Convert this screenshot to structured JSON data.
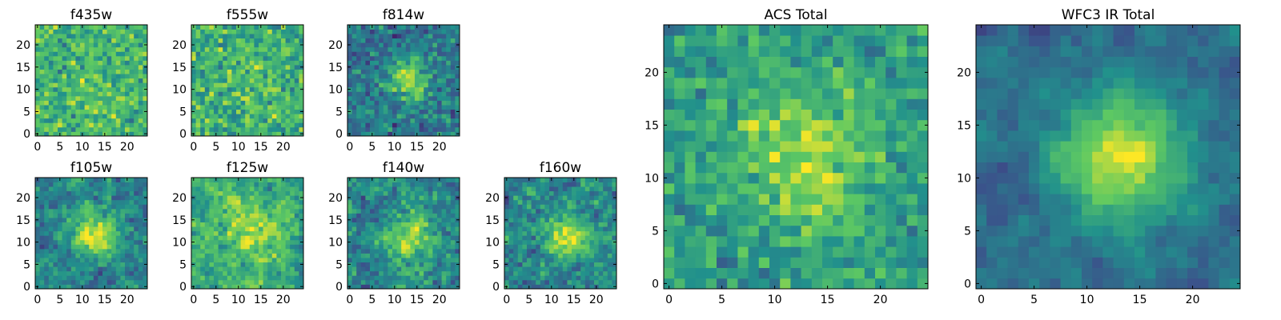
{
  "figure": {
    "colormap": "viridis",
    "colors": [
      "#440154",
      "#3b528b",
      "#21918c",
      "#5ec962",
      "#fde725"
    ]
  },
  "chart_data": [
    {
      "type": "heatmap",
      "title": "f435w",
      "xlim": [
        0,
        24
      ],
      "ylim": [
        0,
        24
      ],
      "xticks": [
        0,
        5,
        10,
        15,
        20
      ],
      "yticks": [
        0,
        5,
        10,
        15,
        20
      ],
      "nx": 25,
      "ny": 25,
      "noise": 0.32,
      "peak": 0.05,
      "base": 0.66,
      "center": [
        13,
        11
      ],
      "sigma": 5,
      "smooth": 0
    },
    {
      "type": "heatmap",
      "title": "f555w",
      "xlim": [
        0,
        24
      ],
      "ylim": [
        0,
        24
      ],
      "xticks": [
        0,
        5,
        10,
        15,
        20
      ],
      "yticks": [
        0,
        5,
        10,
        15,
        20
      ],
      "nx": 25,
      "ny": 25,
      "noise": 0.34,
      "peak": 0.08,
      "base": 0.62,
      "center": [
        13,
        11
      ],
      "sigma": 5,
      "smooth": 0
    },
    {
      "type": "heatmap",
      "title": "f814w",
      "xlim": [
        0,
        24
      ],
      "ylim": [
        0,
        24
      ],
      "xticks": [
        0,
        5,
        10,
        15,
        20
      ],
      "yticks": [
        0,
        5,
        10,
        15,
        20
      ],
      "nx": 25,
      "ny": 25,
      "noise": 0.3,
      "peak": 0.45,
      "base": 0.4,
      "center": [
        13,
        12
      ],
      "sigma": 3.2,
      "smooth": 0
    },
    {
      "type": "heatmap",
      "title": "f105w",
      "xlim": [
        0,
        24
      ],
      "ylim": [
        0,
        24
      ],
      "xticks": [
        0,
        5,
        10,
        15,
        20
      ],
      "yticks": [
        0,
        5,
        10,
        15,
        20
      ],
      "nx": 25,
      "ny": 25,
      "noise": 0.28,
      "peak": 0.5,
      "base": 0.42,
      "center": [
        13,
        12
      ],
      "sigma": 4,
      "smooth": 1
    },
    {
      "type": "heatmap",
      "title": "f125w",
      "xlim": [
        0,
        24
      ],
      "ylim": [
        0,
        24
      ],
      "xticks": [
        0,
        5,
        10,
        15,
        20
      ],
      "yticks": [
        0,
        5,
        10,
        15,
        20
      ],
      "nx": 25,
      "ny": 25,
      "noise": 0.3,
      "peak": 0.25,
      "base": 0.6,
      "center": [
        12,
        13
      ],
      "sigma": 5,
      "smooth": 1
    },
    {
      "type": "heatmap",
      "title": "f140w",
      "xlim": [
        0,
        24
      ],
      "ylim": [
        0,
        24
      ],
      "xticks": [
        0,
        5,
        10,
        15,
        20
      ],
      "yticks": [
        0,
        5,
        10,
        15,
        20
      ],
      "nx": 25,
      "ny": 25,
      "noise": 0.32,
      "peak": 0.42,
      "base": 0.45,
      "center": [
        13,
        11
      ],
      "sigma": 4,
      "smooth": 1
    },
    {
      "type": "heatmap",
      "title": "f160w",
      "xlim": [
        0,
        24
      ],
      "ylim": [
        0,
        24
      ],
      "xticks": [
        0,
        5,
        10,
        15,
        20
      ],
      "yticks": [
        0,
        5,
        10,
        15,
        20
      ],
      "nx": 25,
      "ny": 25,
      "noise": 0.32,
      "peak": 0.45,
      "base": 0.45,
      "center": [
        13,
        11
      ],
      "sigma": 3.5,
      "smooth": 1
    },
    {
      "type": "heatmap",
      "title": "ACS Total",
      "xlim": [
        0,
        24
      ],
      "ylim": [
        0,
        24
      ],
      "xticks": [
        0,
        5,
        10,
        15,
        20
      ],
      "yticks": [
        0,
        5,
        10,
        15,
        20
      ],
      "nx": 25,
      "ny": 25,
      "noise": 0.26,
      "peak": 0.32,
      "base": 0.55,
      "center": [
        13,
        12
      ],
      "sigma": 4.5,
      "smooth": 0
    },
    {
      "type": "heatmap",
      "title": "WFC3 IR Total",
      "xlim": [
        0,
        24
      ],
      "ylim": [
        0,
        24
      ],
      "xticks": [
        0,
        5,
        10,
        15,
        20
      ],
      "yticks": [
        0,
        5,
        10,
        15,
        20
      ],
      "nx": 25,
      "ny": 25,
      "noise": 0.18,
      "peak": 0.6,
      "base": 0.35,
      "center": [
        13,
        12
      ],
      "sigma": 4.2,
      "smooth": 2
    }
  ]
}
